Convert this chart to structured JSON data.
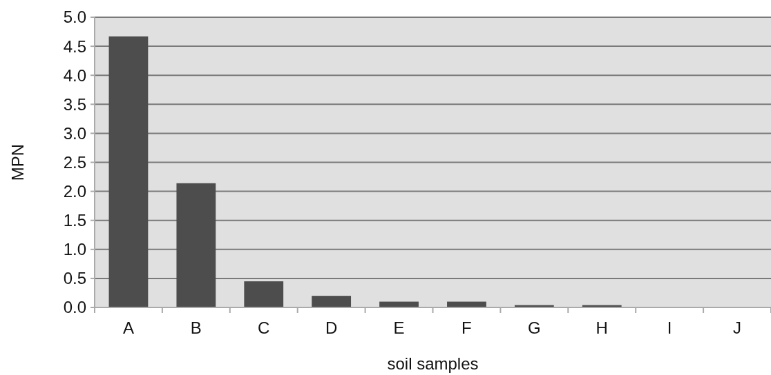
{
  "chart_data": {
    "type": "bar",
    "xlabel": "soil samples",
    "ylabel": "MPN",
    "categories": [
      "A",
      "B",
      "C",
      "D",
      "E",
      "F",
      "G",
      "H",
      "I",
      "J"
    ],
    "values": [
      4.67,
      2.14,
      0.45,
      0.2,
      0.1,
      0.1,
      0.04,
      0.04,
      0,
      0
    ],
    "color": "#4d4d4d",
    "ylim": [
      0,
      5
    ],
    "yticks": [
      {
        "value": 0,
        "label": "0.0"
      },
      {
        "value": 0.5,
        "label": "0.5"
      },
      {
        "value": 1,
        "label": "1.0"
      },
      {
        "value": 1.5,
        "label": "1.5"
      },
      {
        "value": 2,
        "label": "2.0"
      },
      {
        "value": 2.5,
        "label": "2.5"
      },
      {
        "value": 3,
        "label": "3.0"
      },
      {
        "value": 3.5,
        "label": "3.5"
      },
      {
        "value": 4,
        "label": "4.0"
      },
      {
        "value": 4.5,
        "label": "4.5"
      },
      {
        "value": 5,
        "label": "5.0"
      }
    ],
    "grid": "y"
  }
}
